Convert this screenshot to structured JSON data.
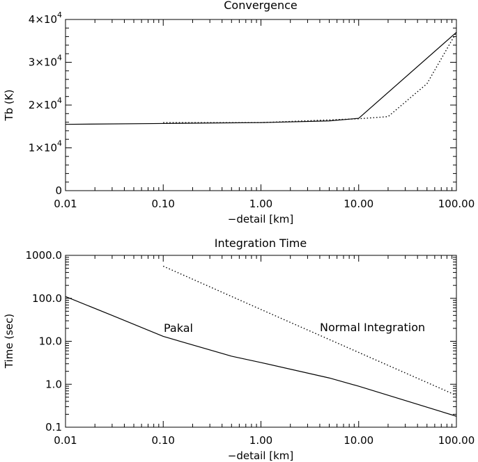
{
  "chart_data": [
    {
      "type": "line",
      "title": "Convergence",
      "xlabel": "−detail [km]",
      "ylabel": "Tb (K)",
      "x_scale": "log",
      "xlim": [
        0.01,
        100
      ],
      "ylim": [
        0,
        40000
      ],
      "x_tick_labels": [
        "0.01",
        "0.10",
        "1.00",
        "10.00",
        "100.00"
      ],
      "x_tick_values": [
        0.01,
        0.1,
        1,
        10,
        100
      ],
      "y_tick_labels": [
        {
          "value": 0,
          "mantissa": "0",
          "exponent": ""
        },
        {
          "value": 10000,
          "mantissa": "1×10",
          "exponent": "4"
        },
        {
          "value": 20000,
          "mantissa": "2×10",
          "exponent": "4"
        },
        {
          "value": 30000,
          "mantissa": "3×10",
          "exponent": "4"
        },
        {
          "value": 40000,
          "mantissa": "4×10",
          "exponent": "4"
        }
      ],
      "series": [
        {
          "style": "solid",
          "x": [
            0.01,
            0.1,
            1,
            5,
            10,
            100
          ],
          "y": [
            15500,
            15700,
            15900,
            16300,
            16900,
            37000
          ]
        },
        {
          "style": "dotted",
          "x": [
            0.1,
            1,
            10,
            20,
            50,
            100
          ],
          "y": [
            15900,
            15900,
            16800,
            17300,
            25000,
            37000
          ]
        }
      ],
      "grid": false
    },
    {
      "type": "line",
      "title": "Integration Time",
      "xlabel": "−detail [km]",
      "ylabel": "Time (sec)",
      "x_scale": "log",
      "y_scale": "log",
      "xlim": [
        0.01,
        100
      ],
      "ylim": [
        0.1,
        1000
      ],
      "x_tick_labels": [
        "0.01",
        "0.10",
        "1.00",
        "10.00",
        "100.00"
      ],
      "x_tick_values": [
        0.01,
        0.1,
        1,
        10,
        100
      ],
      "y_tick_labels": [
        "0.1",
        "1.0",
        "10.0",
        "100.0",
        "1000.0"
      ],
      "y_tick_values": [
        0.1,
        1,
        10,
        100,
        1000
      ],
      "series": [
        {
          "name": "Pakal",
          "style": "solid",
          "x": [
            0.01,
            0.03,
            0.1,
            0.5,
            1,
            5,
            10,
            100
          ],
          "y": [
            110,
            40,
            13,
            4.5,
            3.2,
            1.4,
            0.9,
            0.18
          ]
        },
        {
          "name": "Normal Integration",
          "style": "dotted",
          "x": [
            0.1,
            1,
            10,
            100
          ],
          "y": [
            560,
            55,
            5.5,
            0.55
          ]
        }
      ],
      "annotations": [
        {
          "text": "Pakal",
          "x": 0.1,
          "y": 20
        },
        {
          "text": "Normal Integration",
          "x": 4,
          "y": 14
        }
      ],
      "grid": false
    }
  ]
}
